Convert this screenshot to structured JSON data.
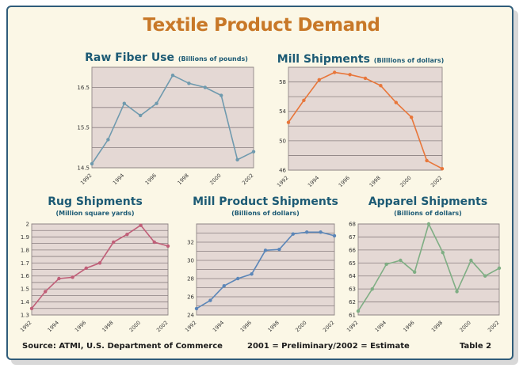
{
  "title": "Textile Product Demand",
  "footer": {
    "source": "Source: ATMI, U.S. Department of Commerce",
    "note": "2001 = Preliminary/2002 = Estimate",
    "table": "Table 2"
  },
  "colors": {
    "title": "#c87828",
    "heading": "#1c5a74",
    "plot_bg": "#e4d8d4",
    "frame_border": "#2f5c7a"
  },
  "chart_data": [
    {
      "id": "raw-fiber",
      "type": "line",
      "title": "Raw Fiber Use",
      "units": "(Billions of pounds)",
      "subtitle": "",
      "color": "#6f9aae",
      "x": [
        1992,
        1993,
        1994,
        1995,
        1996,
        1997,
        1998,
        1999,
        2000,
        2001,
        2002
      ],
      "xticks": [
        "1992",
        "1994",
        "1996",
        "1998",
        "2000",
        "2002"
      ],
      "y": [
        14.6,
        15.2,
        16.1,
        15.8,
        16.1,
        16.8,
        16.6,
        16.5,
        16.3,
        14.7,
        14.9
      ],
      "ylim": [
        14.5,
        17.0
      ],
      "ygrid": [
        14.5,
        15.0,
        15.5,
        16.0,
        16.5,
        17.0
      ],
      "yticks": [
        {
          "v": 14.5,
          "t": "14.5"
        },
        {
          "v": 15.5,
          "t": "15.5"
        },
        {
          "v": 16.5,
          "t": "16.5"
        }
      ]
    },
    {
      "id": "mill-shipments",
      "type": "line",
      "title": "Mill Shipments",
      "units": "(Billlions of dollars)",
      "subtitle": "",
      "color": "#e8763a",
      "x": [
        1992,
        1993,
        1994,
        1995,
        1996,
        1997,
        1998,
        1999,
        2000,
        2001,
        2002
      ],
      "xticks": [
        "1992",
        "1994",
        "1996",
        "1998",
        "2000",
        "2002"
      ],
      "y": [
        52.5,
        55.5,
        58.3,
        59.3,
        59.0,
        58.5,
        57.5,
        55.2,
        53.2,
        47.3,
        46.2
      ],
      "ylim": [
        46,
        60
      ],
      "ygrid": [
        46,
        48,
        50,
        52,
        54,
        56,
        58,
        60
      ],
      "yticks": [
        {
          "v": 46,
          "t": "46"
        },
        {
          "v": 50,
          "t": "50"
        },
        {
          "v": 54,
          "t": "54"
        },
        {
          "v": 58,
          "t": "58"
        }
      ]
    },
    {
      "id": "rug-shipments",
      "type": "line",
      "title": "Rug Shipments",
      "units": "",
      "subtitle": "(Million square yards)",
      "color": "#c05f78",
      "x": [
        1992,
        1993,
        1994,
        1995,
        1996,
        1997,
        1998,
        1999,
        2000,
        2001,
        2002
      ],
      "xticks": [
        "1992",
        "1994",
        "1996",
        "1998",
        "2000",
        "2002"
      ],
      "y": [
        1.35,
        1.48,
        1.58,
        1.59,
        1.66,
        1.7,
        1.86,
        1.92,
        1.99,
        1.86,
        1.83
      ],
      "ylim": [
        1.3,
        2.0
      ],
      "ygrid": [
        1.3,
        1.35,
        1.4,
        1.45,
        1.5,
        1.55,
        1.6,
        1.65,
        1.7,
        1.75,
        1.8,
        1.85,
        1.9,
        1.95,
        2.0
      ],
      "yticks": [
        {
          "v": 1.3,
          "t": "1.3"
        },
        {
          "v": 1.4,
          "t": "1.4"
        },
        {
          "v": 1.5,
          "t": "1.5"
        },
        {
          "v": 1.6,
          "t": "1.6"
        },
        {
          "v": 1.7,
          "t": "1.7"
        },
        {
          "v": 1.8,
          "t": "1.8"
        },
        {
          "v": 1.9,
          "t": "1.9"
        },
        {
          "v": 2.0,
          "t": "2"
        }
      ]
    },
    {
      "id": "mill-product-shipments",
      "type": "line",
      "title": "Mill Product Shipments",
      "units": "",
      "subtitle": "(Billions of dollars)",
      "color": "#5b86b8",
      "x": [
        1992,
        1993,
        1994,
        1995,
        1996,
        1997,
        1998,
        1999,
        2000,
        2001,
        2002
      ],
      "xticks": [
        "1992",
        "1994",
        "1996",
        "1998",
        "2000",
        "2002"
      ],
      "y": [
        24.7,
        25.6,
        27.2,
        28.0,
        28.5,
        31.1,
        31.2,
        32.9,
        33.1,
        33.1,
        32.7
      ],
      "ylim": [
        24,
        34
      ],
      "ygrid": [
        24,
        25,
        26,
        27,
        28,
        29,
        30,
        31,
        32,
        33,
        34
      ],
      "yticks": [
        {
          "v": 24,
          "t": "24"
        },
        {
          "v": 26,
          "t": "26"
        },
        {
          "v": 28,
          "t": "28"
        },
        {
          "v": 30,
          "t": "30"
        },
        {
          "v": 32,
          "t": "32"
        }
      ]
    },
    {
      "id": "apparel-shipments",
      "type": "line",
      "title": "Apparel Shipments",
      "units": "",
      "subtitle": "(Billions of dollars)",
      "color": "#7fae84",
      "x": [
        1992,
        1993,
        1994,
        1995,
        1996,
        1997,
        1998,
        1999,
        2000,
        2001,
        2002
      ],
      "xticks": [
        "1992",
        "1994",
        "1996",
        "1998",
        "2000",
        "2002"
      ],
      "y": [
        61.3,
        63.0,
        64.9,
        65.2,
        64.3,
        68.0,
        65.8,
        62.8,
        65.2,
        64.0,
        64.6
      ],
      "ylim": [
        61,
        68
      ],
      "ygrid": [
        61,
        62,
        63,
        64,
        65,
        66,
        67,
        68
      ],
      "yticks": [
        {
          "v": 61,
          "t": "61"
        },
        {
          "v": 62,
          "t": "62"
        },
        {
          "v": 63,
          "t": "63"
        },
        {
          "v": 64,
          "t": "64"
        },
        {
          "v": 65,
          "t": "65"
        },
        {
          "v": 66,
          "t": "66"
        },
        {
          "v": 67,
          "t": "67"
        },
        {
          "v": 68,
          "t": "68"
        }
      ]
    }
  ]
}
